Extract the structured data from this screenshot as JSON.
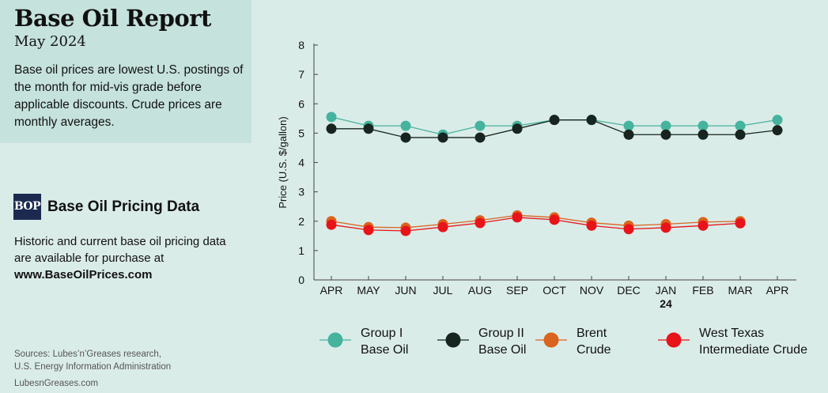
{
  "header": {
    "title": "Base Oil Report",
    "date": "May 2024",
    "description": "Base oil prices are lowest U.S. postings of the month for mid-vis grade before applicable discounts. Crude prices are monthly averages."
  },
  "promo": {
    "logo_text": "BOP",
    "heading": "Base Oil Pricing Data",
    "description": "Historic and current base oil pricing data are available for purchase at",
    "url": "www.BaseOilPrices.com"
  },
  "footer": {
    "sources_line1": "Sources: Lubes’n’Greases research,",
    "sources_line2": "U.S. Energy Information Administration",
    "site": "LubesnGreases.com"
  },
  "chart_data": {
    "type": "line",
    "categories": [
      "APR",
      "MAY",
      "JUN",
      "JUL",
      "AUG",
      "SEP",
      "OCT",
      "NOV",
      "DEC",
      "JAN",
      "FEB",
      "MAR",
      "APR"
    ],
    "category_sublabels": [
      "",
      "",
      "",
      "",
      "",
      "",
      "",
      "",
      "",
      "24",
      "",
      "",
      ""
    ],
    "ylabel": "Price (U.S. $/gallon)",
    "ylim": [
      0,
      8
    ],
    "yticks": [
      0,
      1,
      2,
      3,
      4,
      5,
      6,
      7,
      8
    ],
    "grid": false,
    "legend_position": "bottom",
    "series": [
      {
        "name_line1": "Group I",
        "name_line2": "Base Oil",
        "color": "#45b39d",
        "line_color": "#45b39d",
        "values": [
          5.55,
          5.25,
          5.25,
          4.95,
          5.25,
          5.25,
          5.45,
          5.45,
          5.25,
          5.25,
          5.25,
          5.25,
          5.45
        ]
      },
      {
        "name_line1": "Group II",
        "name_line2": "Base Oil",
        "color": "#17241f",
        "line_color": "#17241f",
        "values": [
          5.15,
          5.15,
          4.85,
          4.85,
          4.85,
          5.15,
          5.45,
          5.45,
          4.95,
          4.95,
          4.95,
          4.95,
          5.1
        ]
      },
      {
        "name_line1": "Brent",
        "name_line2": "Crude",
        "color": "#d9641e",
        "line_color": "#d9641e",
        "values": [
          2.0,
          1.8,
          1.78,
          1.9,
          2.03,
          2.2,
          2.13,
          1.95,
          1.85,
          1.9,
          1.97,
          2.0,
          null
        ]
      },
      {
        "name_line1": "West Texas",
        "name_line2": "Intermediate Crude",
        "color": "#e8141a",
        "line_color": "#e8141a",
        "values": [
          1.88,
          1.7,
          1.67,
          1.8,
          1.94,
          2.13,
          2.05,
          1.85,
          1.73,
          1.78,
          1.85,
          1.93,
          null
        ]
      }
    ]
  }
}
